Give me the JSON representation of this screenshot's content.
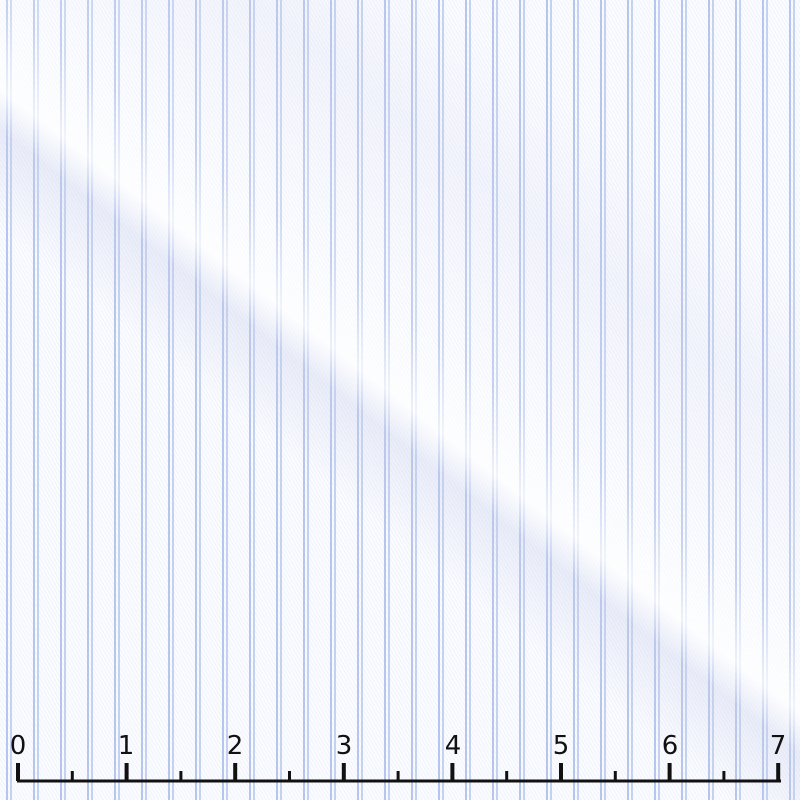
{
  "image": {
    "stripe_color": "#a6b8e8",
    "base_color": "#fbfcff"
  },
  "ruler": {
    "labels": [
      "0",
      "1",
      "2",
      "3",
      "4",
      "5",
      "6",
      "7"
    ],
    "color": "#111111"
  }
}
